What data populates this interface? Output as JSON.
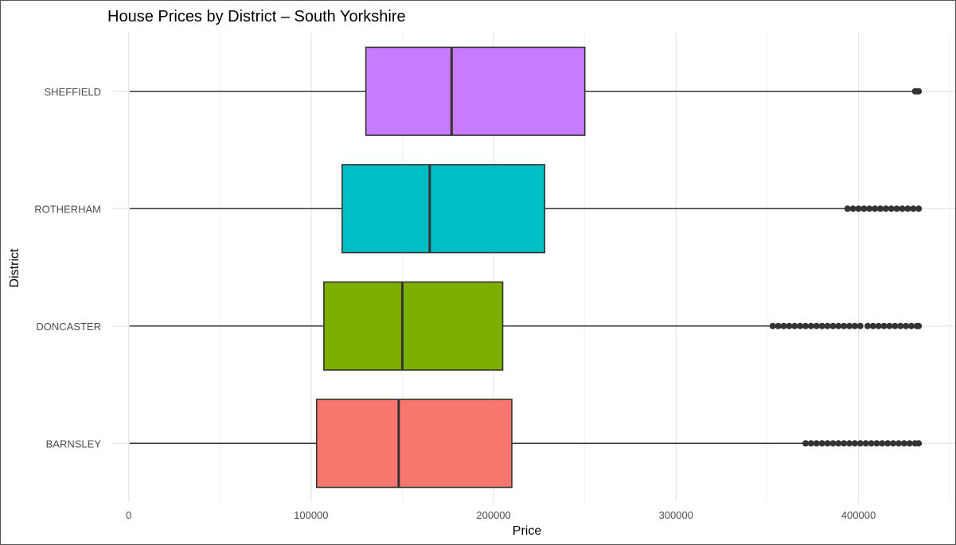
{
  "chart_data": {
    "type": "boxplot",
    "title": "House Prices by District – South Yorkshire",
    "xlabel": "Price",
    "ylabel": "District",
    "xlim": [
      -9000,
      453000
    ],
    "x_ticks": [
      0,
      100000,
      200000,
      300000,
      400000
    ],
    "x_tick_labels": [
      "0",
      "100000",
      "200000",
      "300000",
      "400000"
    ],
    "grid": true,
    "legend": "none",
    "categories": [
      "BARNSLEY",
      "DONCASTER",
      "ROTHERHAM",
      "SHEFFIELD"
    ],
    "boxes": [
      {
        "category": "BARNSLEY",
        "color": "#F8766D",
        "whisker_low": 500,
        "q1": 103000,
        "median": 148000,
        "q3": 210000,
        "whisker_high": 370000,
        "outliers": [
          371000,
          374000,
          377000,
          380000,
          383000,
          386000,
          389000,
          392000,
          395000,
          398000,
          401000,
          404000,
          407000,
          410000,
          413000,
          416000,
          419000,
          422000,
          425000,
          428000,
          431000,
          433000
        ]
      },
      {
        "category": "DONCASTER",
        "color": "#7CAE00",
        "whisker_low": 500,
        "q1": 107000,
        "median": 150000,
        "q3": 205000,
        "whisker_high": 352000,
        "outliers": [
          353000,
          356000,
          359000,
          362000,
          365000,
          368000,
          371000,
          374000,
          377000,
          380000,
          383000,
          386000,
          389000,
          392000,
          395000,
          398000,
          401000,
          405000,
          408000,
          411000,
          414000,
          417000,
          420000,
          423000,
          426000,
          429000,
          432000,
          433000
        ]
      },
      {
        "category": "ROTHERHAM",
        "color": "#00BFC4",
        "whisker_low": 500,
        "q1": 117000,
        "median": 165000,
        "q3": 228000,
        "whisker_high": 393000,
        "outliers": [
          394000,
          397000,
          400000,
          403000,
          406000,
          409000,
          412000,
          415000,
          418000,
          421000,
          424000,
          427000,
          430000,
          433000
        ]
      },
      {
        "category": "SHEFFIELD",
        "color": "#C77CFF",
        "whisker_low": 500,
        "q1": 130000,
        "median": 177000,
        "q3": 250000,
        "whisker_high": 430000,
        "outliers": [
          431000,
          432000,
          433000
        ]
      }
    ]
  }
}
